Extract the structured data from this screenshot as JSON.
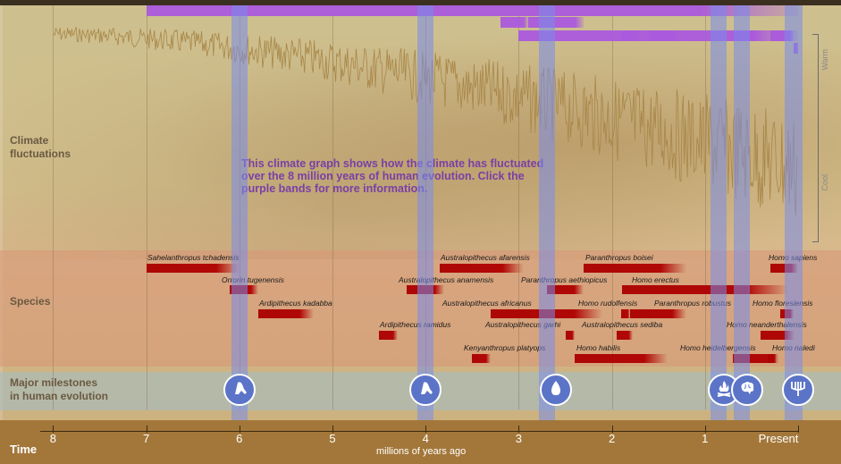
{
  "rows": {
    "climate": "Climate\nfluctuations",
    "species": "Species",
    "milestones": "Major milestones\nin human evolution"
  },
  "note": "This climate graph shows how the climate has fluctuated over the 8 million years of human evolution. Click the purple bands for more information.",
  "scale": {
    "warm": "Warm",
    "cool": "Cool"
  },
  "axis": {
    "time": "Time",
    "title": "millions of years ago",
    "ticks": [
      "8",
      "7",
      "6",
      "5",
      "4",
      "3",
      "2",
      "1",
      "Present"
    ]
  },
  "species": [
    {
      "name": "Sahelanthropus tchadensis",
      "start_mya": 7.0,
      "end_mya": 6.0
    },
    {
      "name": "Orrorin tugenensis",
      "start_mya": 6.1,
      "end_mya": 5.8
    },
    {
      "name": "Ardipithecus kadabba",
      "start_mya": 5.8,
      "end_mya": 5.2
    },
    {
      "name": "Ardipithecus ramidus",
      "start_mya": 4.5,
      "end_mya": 4.3
    },
    {
      "name": "Australopithecus anamensis",
      "start_mya": 4.2,
      "end_mya": 3.8
    },
    {
      "name": "Australopithecus afarensis",
      "start_mya": 3.85,
      "end_mya": 2.95
    },
    {
      "name": "Kenyanthropus platyops",
      "start_mya": 3.5,
      "end_mya": 3.3
    },
    {
      "name": "Australopithecus africanus",
      "start_mya": 3.3,
      "end_mya": 2.1
    },
    {
      "name": "Australopithecus garhi",
      "start_mya": 2.5,
      "end_mya": 2.4
    },
    {
      "name": "Paranthropus aethiopicus",
      "start_mya": 2.7,
      "end_mya": 2.3
    },
    {
      "name": "Paranthropus boisei",
      "start_mya": 2.3,
      "end_mya": 1.2
    },
    {
      "name": "Homo habilis",
      "start_mya": 2.4,
      "end_mya": 1.4
    },
    {
      "name": "Homo rudolfensis",
      "start_mya": 1.9,
      "end_mya": 1.8
    },
    {
      "name": "Australopithecus sediba",
      "start_mya": 1.95,
      "end_mya": 1.78
    },
    {
      "name": "Homo erectus",
      "start_mya": 1.89,
      "end_mya": 0.11
    },
    {
      "name": "Paranthropus robustus",
      "start_mya": 1.8,
      "end_mya": 1.2
    },
    {
      "name": "Homo heidelbergensis",
      "start_mya": 0.7,
      "end_mya": 0.2
    },
    {
      "name": "Homo neanderthalensis",
      "start_mya": 0.4,
      "end_mya": 0.04
    },
    {
      "name": "Homo floresiensis",
      "start_mya": 0.19,
      "end_mya": 0.05
    },
    {
      "name": "Homo naledi",
      "start_mya": 0.33,
      "end_mya": 0.23
    },
    {
      "name": "Homo sapiens",
      "start_mya": 0.3,
      "end_mya": 0.0
    }
  ],
  "purple_periods_mya": [
    {
      "start": 7.0,
      "end": 0.0
    },
    {
      "start": 3.2,
      "end": 2.9
    },
    {
      "start": 3.0,
      "end": 0.0
    },
    {
      "start": 2.9,
      "end": 2.3
    },
    {
      "start": 1.9,
      "end": 1.7
    },
    {
      "start": 1.6,
      "end": 1.3
    },
    {
      "start": 0.7,
      "end": 0.45
    },
    {
      "start": 0.3,
      "end": 0.05
    },
    {
      "start": 0.05,
      "end": 0.0
    }
  ],
  "bands_mya": [
    6.0,
    4.0,
    2.7,
    0.85,
    0.6,
    0.05
  ],
  "milestones": [
    {
      "icon": "bipedal-walking-icon",
      "mya": 6.0
    },
    {
      "icon": "bipedal-walking-icon",
      "mya": 4.0
    },
    {
      "icon": "stone-tool-icon",
      "mya": 2.6
    },
    {
      "icon": "campfire-icon",
      "mya": 0.8
    },
    {
      "icon": "brain-icon",
      "mya": 0.55
    },
    {
      "icon": "trident-tools-icon",
      "mya": 0.0
    }
  ],
  "colors": {
    "band": "#7a8ceb",
    "species_bar": "#aa0000",
    "note_text": "#7a3fa5",
    "purple_bar": "#aa5adc",
    "milestone": "#5b74c8",
    "axis_bg": "#a3773a",
    "climate_line": "#a88647"
  }
}
